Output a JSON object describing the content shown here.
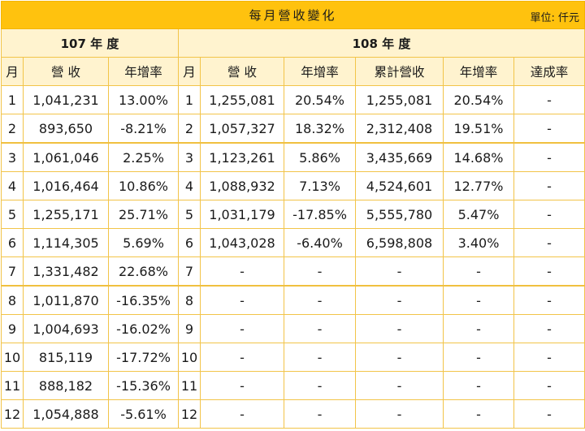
{
  "title": "每月營收變化",
  "unit": "單位: 仟元",
  "year_107": "107 年 度",
  "year_108": "108 年 度",
  "headers": {
    "month": "月",
    "revenue": "營 收",
    "yoy": "年增率",
    "cumulative": "累計營收",
    "cum_yoy": "年增率",
    "achievement": "達成率"
  },
  "rows": [
    {
      "m107": "1",
      "rev107": "1,041,231",
      "yoy107": "13.00%",
      "m108": "1",
      "rev108": "1,255,081",
      "yoy108": "20.54%",
      "cum108": "1,255,081",
      "cumyoy108": "20.54%",
      "ach": "-"
    },
    {
      "m107": "2",
      "rev107": "893,650",
      "yoy107": "-8.21%",
      "m108": "2",
      "rev108": "1,057,327",
      "yoy108": "18.32%",
      "cum108": "2,312,408",
      "cumyoy108": "19.51%",
      "ach": "-"
    },
    {
      "m107": "3",
      "rev107": "1,061,046",
      "yoy107": "2.25%",
      "m108": "3",
      "rev108": "1,123,261",
      "yoy108": "5.86%",
      "cum108": "3,435,669",
      "cumyoy108": "14.68%",
      "ach": "-"
    },
    {
      "m107": "4",
      "rev107": "1,016,464",
      "yoy107": "10.86%",
      "m108": "4",
      "rev108": "1,088,932",
      "yoy108": "7.13%",
      "cum108": "4,524,601",
      "cumyoy108": "12.77%",
      "ach": "-"
    },
    {
      "m107": "5",
      "rev107": "1,255,171",
      "yoy107": "25.71%",
      "m108": "5",
      "rev108": "1,031,179",
      "yoy108": "-17.85%",
      "cum108": "5,555,780",
      "cumyoy108": "5.47%",
      "ach": "-"
    },
    {
      "m107": "6",
      "rev107": "1,114,305",
      "yoy107": "5.69%",
      "m108": "6",
      "rev108": "1,043,028",
      "yoy108": "-6.40%",
      "cum108": "6,598,808",
      "cumyoy108": "3.40%",
      "ach": "-"
    },
    {
      "m107": "7",
      "rev107": "1,331,482",
      "yoy107": "22.68%",
      "m108": "7",
      "rev108": "-",
      "yoy108": "-",
      "cum108": "-",
      "cumyoy108": "-",
      "ach": "-"
    },
    {
      "m107": "8",
      "rev107": "1,011,870",
      "yoy107": "-16.35%",
      "m108": "8",
      "rev108": "-",
      "yoy108": "-",
      "cum108": "-",
      "cumyoy108": "-",
      "ach": "-"
    },
    {
      "m107": "9",
      "rev107": "1,004,693",
      "yoy107": "-16.02%",
      "m108": "9",
      "rev108": "-",
      "yoy108": "-",
      "cum108": "-",
      "cumyoy108": "-",
      "ach": "-"
    },
    {
      "m107": "10",
      "rev107": "815,119",
      "yoy107": "-17.72%",
      "m108": "10",
      "rev108": "-",
      "yoy108": "-",
      "cum108": "-",
      "cumyoy108": "-",
      "ach": "-"
    },
    {
      "m107": "11",
      "rev107": "888,182",
      "yoy107": "-15.36%",
      "m108": "11",
      "rev108": "-",
      "yoy108": "-",
      "cum108": "-",
      "cumyoy108": "-",
      "ach": "-"
    },
    {
      "m107": "12",
      "rev107": "1,054,888",
      "yoy107": "-5.61%",
      "m108": "12",
      "rev108": "-",
      "yoy108": "-",
      "cum108": "-",
      "cumyoy108": "-",
      "ach": "-"
    }
  ]
}
